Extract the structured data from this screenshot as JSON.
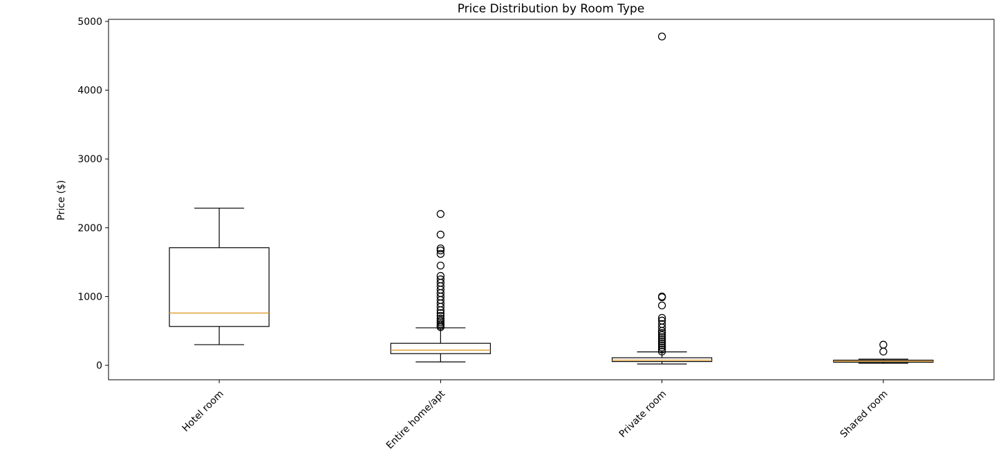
{
  "chart_data": {
    "type": "box",
    "title": "Price Distribution by Room Type",
    "xlabel": "",
    "ylabel": "Price ($)",
    "ylim": [
      -210,
      5030
    ],
    "yticks": [
      0,
      1000,
      2000,
      3000,
      4000,
      5000
    ],
    "grid": false,
    "median_color": "#e0a23a",
    "box_edge_color": "#000000",
    "categories": [
      "Hotel room",
      "Entire home/apt",
      "Private room",
      "Shared room"
    ],
    "boxes": [
      {
        "category": "Hotel room",
        "whisker_low": 300,
        "q1": 565,
        "median": 760,
        "q3": 1710,
        "whisker_high": 2285,
        "outliers": []
      },
      {
        "category": "Entire home/apt",
        "whisker_low": 50,
        "q1": 170,
        "median": 220,
        "q3": 320,
        "whisker_high": 545,
        "outliers": [
          555,
          575,
          600,
          625,
          650,
          680,
          720,
          760,
          800,
          850,
          900,
          950,
          1000,
          1050,
          1100,
          1150,
          1200,
          1250,
          1300,
          1450,
          1620,
          1670,
          1700,
          1900,
          2200
        ]
      },
      {
        "category": "Private room",
        "whisker_low": 20,
        "q1": 55,
        "median": 75,
        "q3": 110,
        "whisker_high": 195,
        "outliers": [
          200,
          230,
          260,
          290,
          320,
          350,
          380,
          410,
          440,
          470,
          500,
          550,
          600,
          650,
          690,
          870,
          990,
          1000,
          4780
        ]
      },
      {
        "category": "Shared room",
        "whisker_low": 30,
        "q1": 45,
        "median": 60,
        "q3": 75,
        "whisker_high": 90,
        "outliers": [
          200,
          300
        ]
      }
    ]
  }
}
